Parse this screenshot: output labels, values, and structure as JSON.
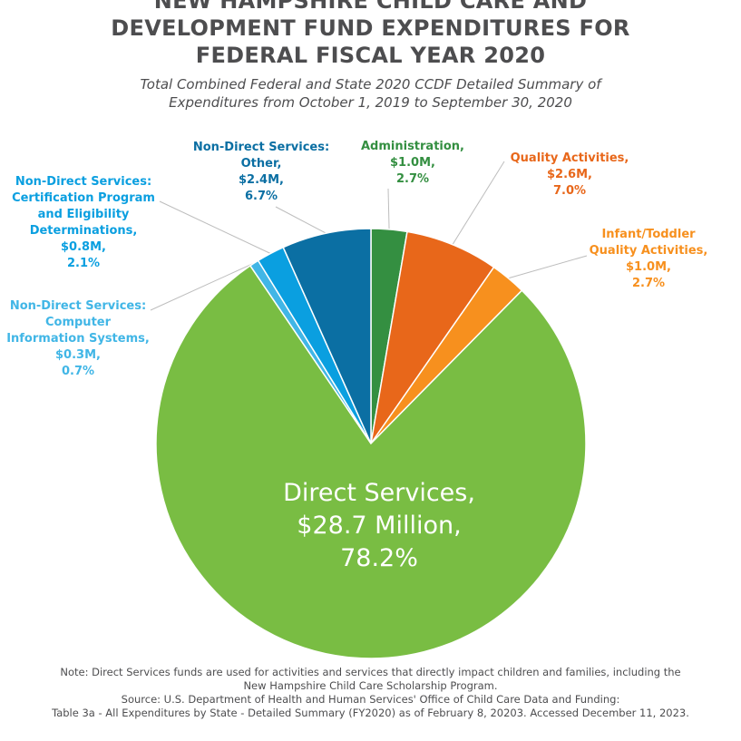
{
  "header": {
    "title_lines": [
      "NEW HAMPSHIRE CHILD CARE AND",
      "DEVELOPMENT FUND EXPENDITURES FOR",
      "FEDERAL FISCAL YEAR 2020"
    ],
    "subtitle_lines": [
      "Total Combined Federal and State 2020 CCDF Detailed Summary of",
      "Expenditures from October 1, 2019 to September 30, 2020"
    ]
  },
  "chart_data": {
    "type": "pie",
    "title": "NEW HAMPSHIRE CHILD CARE AND DEVELOPMENT FUND EXPENDITURES FOR FEDERAL FISCAL YEAR 2020",
    "subtitle": "Total Combined Federal and State 2020 CCDF Detailed Summary of Expenditures from October 1, 2019 to September 30, 2020",
    "slices": [
      {
        "label": "Administration",
        "amount": "$1.0M",
        "value": 2.7,
        "color": "#348f41"
      },
      {
        "label": "Quality Activities",
        "amount": "$2.6M",
        "value": 7.0,
        "color": "#e8671a"
      },
      {
        "label": "Infant/Toddler Quality Activities",
        "amount": "$1.0M",
        "value": 2.7,
        "color": "#f7901e"
      },
      {
        "label": "Direct Services",
        "amount": "$28.7 Million",
        "value": 78.2,
        "color": "#79bd43"
      },
      {
        "label": "Non-Direct Services: Computer Information Systems",
        "amount": "$0.3M",
        "value": 0.7,
        "color": "#41b6e6"
      },
      {
        "label": "Non-Direct Services: Certification Program and Eligibility Determinations",
        "amount": "$0.8M",
        "value": 2.1,
        "color": "#0a9fe0"
      },
      {
        "label": "Non-Direct Services: Other",
        "amount": "$2.4M",
        "value": 6.7,
        "color": "#0b6fa3"
      }
    ]
  },
  "labels": {
    "admin": [
      "Administration,",
      "$1.0M,",
      "2.7%"
    ],
    "quality": [
      "Quality Activities,",
      "$2.6M,",
      "7.0%"
    ],
    "infant": [
      "Infant/Toddler",
      "Quality Activities,",
      "$1.0M,",
      "2.7%"
    ],
    "direct": [
      "Direct Services,",
      "$28.7 Million,",
      "78.2%"
    ],
    "computer": [
      "Non-Direct Services:",
      "Computer",
      "Information  Systems,",
      "$0.3M,",
      "0.7%"
    ],
    "certification": [
      "Non-Direct Services:",
      "Certification Program",
      "and Eligibility",
      "Determinations,",
      "$0.8M,",
      "2.1%"
    ],
    "other": [
      "Non-Direct Services:",
      "Other,",
      "$2.4M,",
      "6.7%"
    ]
  },
  "colors": {
    "admin_text": "#348f41",
    "quality_text": "#e8671a",
    "infant_text": "#f7901e",
    "computer_text": "#41b6e6",
    "certification_text": "#0a9fe0",
    "other_text": "#0b6fa3",
    "direct_text": "#ffffff"
  },
  "notes": [
    "Note: Direct Services funds are used for activities and services that directly impact children and families, including the",
    "New Hampshire Child Care Scholarship Program.",
    "Source: U.S. Department of Health and Human Services' Office of Child Care Data and Funding:",
    "Table 3a - All Expenditures by State - Detailed Summary (FY2020) as of February 8, 20203. Accessed December 11, 2023."
  ]
}
